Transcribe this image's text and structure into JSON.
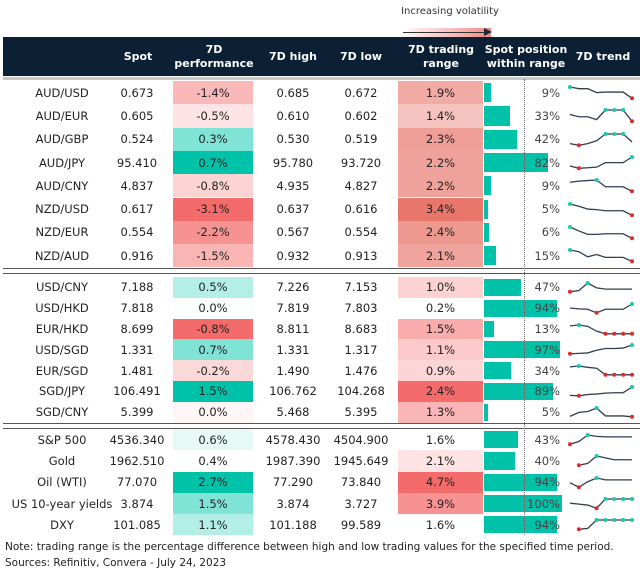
{
  "legend": {
    "label": "Increasing volatility"
  },
  "headers": {
    "spot": "Spot",
    "perf": "7D performance",
    "high": "7D high",
    "low": "7D low",
    "range": "7D trading range",
    "position": "Spot position within range",
    "trend": "7D trend"
  },
  "colors": {
    "header_bg": "#0b1f35",
    "bar": "#00c2a8",
    "max_marker": "#19c9b0",
    "min_marker": "#e02b2b",
    "trend_line": "#2e3f52"
  },
  "groups": [
    {
      "rows": [
        {
          "label": "AUD/USD",
          "spot": "0.673",
          "perf": "-1.4%",
          "perf_color": "#f9b9b9",
          "high": "0.685",
          "low": "0.672",
          "range": "1.9%",
          "range_color": "#f2aaa5",
          "position": 9,
          "trend": [
            1,
            0.85,
            0.85,
            0.5,
            0.55,
            0.55,
            0.55,
            0
          ]
        },
        {
          "label": "AUD/EUR",
          "spot": "0.605",
          "perf": "-0.5%",
          "perf_color": "#fde3e3",
          "high": "0.610",
          "low": "0.602",
          "range": "1.4%",
          "range_color": "#f5c3c0",
          "position": 33,
          "trend": [
            0.6,
            0.4,
            0.4,
            0.15,
            1,
            1,
            1,
            0
          ]
        },
        {
          "label": "AUD/GBP",
          "spot": "0.524",
          "perf": "0.3%",
          "perf_color": "#7fe4d5",
          "high": "0.530",
          "low": "0.519",
          "range": "2.3%",
          "range_color": "#ef9e98",
          "position": 42,
          "trend": [
            0.15,
            0,
            0.15,
            0.4,
            1,
            1,
            1,
            0.3
          ]
        },
        {
          "label": "AUD/JPY",
          "spot": "95.410",
          "perf": "0.7%",
          "perf_color": "#00c2a8",
          "high": "95.780",
          "low": "93.720",
          "range": "2.2%",
          "range_color": "#efa19b",
          "position": 82,
          "trend": [
            0.2,
            0,
            0.05,
            0.1,
            0.5,
            0.5,
            0.5,
            1
          ]
        },
        {
          "label": "AUD/CNY",
          "spot": "4.837",
          "perf": "-0.8%",
          "perf_color": "#fcd4d4",
          "high": "4.935",
          "low": "4.827",
          "range": "2.2%",
          "range_color": "#efa19b",
          "position": 9,
          "trend": [
            0.8,
            0.9,
            0.95,
            1,
            0.4,
            0.4,
            0.4,
            0
          ]
        },
        {
          "label": "NZD/USD",
          "spot": "0.617",
          "perf": "-3.1%",
          "perf_color": "#f46b6b",
          "high": "0.637",
          "low": "0.616",
          "range": "3.4%",
          "range_color": "#e8766a",
          "position": 5,
          "trend": [
            1,
            0.8,
            0.55,
            0.5,
            0.4,
            0.4,
            0.4,
            0
          ]
        },
        {
          "label": "NZD/EUR",
          "spot": "0.554",
          "perf": "-2.2%",
          "perf_color": "#f79292",
          "high": "0.567",
          "low": "0.554",
          "range": "2.4%",
          "range_color": "#ee9990",
          "position": 6,
          "trend": [
            1,
            0.65,
            0.35,
            0.35,
            0.4,
            0.4,
            0.4,
            0
          ]
        },
        {
          "label": "NZD/AUD",
          "spot": "0.916",
          "perf": "-1.5%",
          "perf_color": "#f9b4b4",
          "high": "0.932",
          "low": "0.913",
          "range": "2.1%",
          "range_color": "#f0a49e",
          "position": 15,
          "trend": [
            1,
            0.85,
            0.4,
            0.6,
            0.35,
            0.35,
            0.35,
            0
          ]
        }
      ]
    },
    {
      "rows": [
        {
          "label": "USD/CNY",
          "spot": "7.188",
          "perf": "0.5%",
          "perf_color": "#b3efe6",
          "high": "7.226",
          "low": "7.153",
          "range": "1.0%",
          "range_color": "#fcd2d2",
          "position": 47,
          "trend": [
            0,
            0.15,
            1,
            0.45,
            0.3,
            0.3,
            0.3,
            0.3
          ]
        },
        {
          "label": "USD/HKD",
          "spot": "7.818",
          "perf": "0.0%",
          "perf_color": "#fbfefd",
          "high": "7.819",
          "low": "7.803",
          "range": "0.2%",
          "range_color": "#ffffff",
          "position": 94,
          "trend": [
            0.55,
            0.45,
            0.4,
            0,
            0.4,
            0.4,
            0.4,
            1
          ]
        },
        {
          "label": "EUR/HKD",
          "spot": "8.699",
          "perf": "-0.8%",
          "perf_color": "#f46b6b",
          "high": "8.811",
          "low": "8.683",
          "range": "1.5%",
          "range_color": "#f9acac",
          "position": 13,
          "trend": [
            0.9,
            1,
            0.85,
            0.3,
            0,
            0,
            0,
            0
          ]
        },
        {
          "label": "USD/SGD",
          "spot": "1.331",
          "perf": "0.7%",
          "perf_color": "#7fe4d5",
          "high": "1.331",
          "low": "1.317",
          "range": "1.1%",
          "range_color": "#fccaca",
          "position": 97,
          "trend": [
            0,
            0.05,
            0.1,
            0.4,
            0.6,
            0.6,
            0.65,
            1
          ]
        },
        {
          "label": "EUR/SGD",
          "spot": "1.481",
          "perf": "-0.2%",
          "perf_color": "#fcd9d9",
          "high": "1.490",
          "low": "1.476",
          "range": "0.9%",
          "range_color": "#fcd6d6",
          "position": 34,
          "trend": [
            0.9,
            1,
            0.85,
            0.75,
            0,
            0,
            0,
            0
          ]
        },
        {
          "label": "SGD/JPY",
          "spot": "106.491",
          "perf": "1.5%",
          "perf_color": "#00c2a8",
          "high": "106.762",
          "low": "104.268",
          "range": "2.4%",
          "range_color": "#f46b6b",
          "position": 89,
          "trend": [
            0.05,
            0,
            0.15,
            0.2,
            0.3,
            0.35,
            0.35,
            1
          ]
        },
        {
          "label": "SGD/CNY",
          "spot": "5.399",
          "perf": "0.0%",
          "perf_color": "#fef6f6",
          "high": "5.468",
          "low": "5.395",
          "range": "1.3%",
          "range_color": "#fab6b6",
          "position": 5,
          "trend": [
            0.05,
            0.5,
            0.6,
            1,
            0.1,
            0.1,
            0.1,
            0
          ]
        }
      ]
    },
    {
      "rows": [
        {
          "label": "S&P 500",
          "spot": "4536.340",
          "perf": "0.6%",
          "perf_color": "#e6f9f6",
          "high": "4578.430",
          "low": "4504.900",
          "range": "1.6%",
          "range_color": "#ffffff",
          "position": 43,
          "trend": [
            0,
            0.3,
            1,
            0.85,
            0.8,
            0.8,
            0.8,
            0.8
          ]
        },
        {
          "label": "Gold",
          "spot": "1962.510",
          "perf": "0.4%",
          "perf_color": "#ffffff",
          "high": "1987.390",
          "low": "1945.649",
          "range": "2.1%",
          "range_color": "#fde3e3",
          "position": 40,
          "trend": [
            null,
            0,
            0.2,
            1,
            0.8,
            0.6,
            0.6,
            0.6
          ]
        },
        {
          "label": "Oil (WTI)",
          "spot": "77.070",
          "perf": "2.7%",
          "perf_color": "#00c2a8",
          "high": "77.290",
          "low": "73.840",
          "range": "4.7%",
          "range_color": "#f46b6b",
          "position": 94,
          "trend": [
            0.5,
            0,
            0.6,
            1,
            0.8,
            0.8,
            0.8,
            0.8
          ]
        },
        {
          "label": "US 10-year yields",
          "spot": "3.874",
          "perf": "1.5%",
          "perf_color": "#7fe4d5",
          "high": "3.874",
          "low": "3.727",
          "range": "3.9%",
          "range_color": "#f79292",
          "position": 100,
          "trend": [
            0.55,
            0.45,
            0.35,
            0,
            1,
            1,
            1,
            1
          ]
        },
        {
          "label": "DXY",
          "spot": "101.085",
          "perf": "1.1%",
          "perf_color": "#b3efe6",
          "high": "101.188",
          "low": "99.589",
          "range": "1.6%",
          "range_color": "#ffffff",
          "position": 94,
          "trend": [
            null,
            0,
            0.1,
            1,
            1,
            1,
            1,
            1
          ]
        }
      ]
    }
  ],
  "notes": {
    "note": "Note: trading range is the percentage difference between high and low trading values for the specified time period.",
    "sources": "Sources: Refinitiv, Convera - July 24, 2023"
  }
}
